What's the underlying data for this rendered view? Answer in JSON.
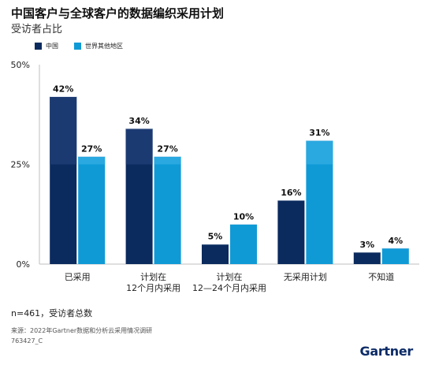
{
  "title": "中国客户与全球客户的数据编织采用计划",
  "subtitle": "受访者占比",
  "note": "n=461，受访者总数",
  "source": "来源：2022年Gartner数据和分析云采用情况调研",
  "code": "763427_C",
  "logo": "Gartner",
  "colors": {
    "china": "#0b2b5e",
    "china_top": "#1c3a72",
    "world": "#0f9ad6",
    "world_top": "#2aa8e0"
  },
  "chart_data": {
    "type": "bar",
    "categories": [
      [
        "已采用"
      ],
      [
        "计划在",
        "12个月内采用"
      ],
      [
        "计划在",
        "12—24个月内采用"
      ],
      [
        "无采用计划"
      ],
      [
        "不知道"
      ]
    ],
    "series": [
      {
        "name": "中国",
        "values": [
          42,
          34,
          5,
          16,
          3
        ]
      },
      {
        "name": "世界其他地区",
        "values": [
          27,
          27,
          10,
          31,
          4
        ]
      }
    ],
    "data_labels": [
      [
        "42%",
        "34%",
        "5%",
        "16%",
        "3%"
      ],
      [
        "27%",
        "27%",
        "10%",
        "31%",
        "4%"
      ]
    ],
    "ylim": [
      0,
      50
    ],
    "yticks": [
      0,
      25,
      50
    ],
    "ytick_labels": [
      "0%",
      "25%",
      "50%"
    ],
    "legend": "top-left",
    "grid": false
  }
}
